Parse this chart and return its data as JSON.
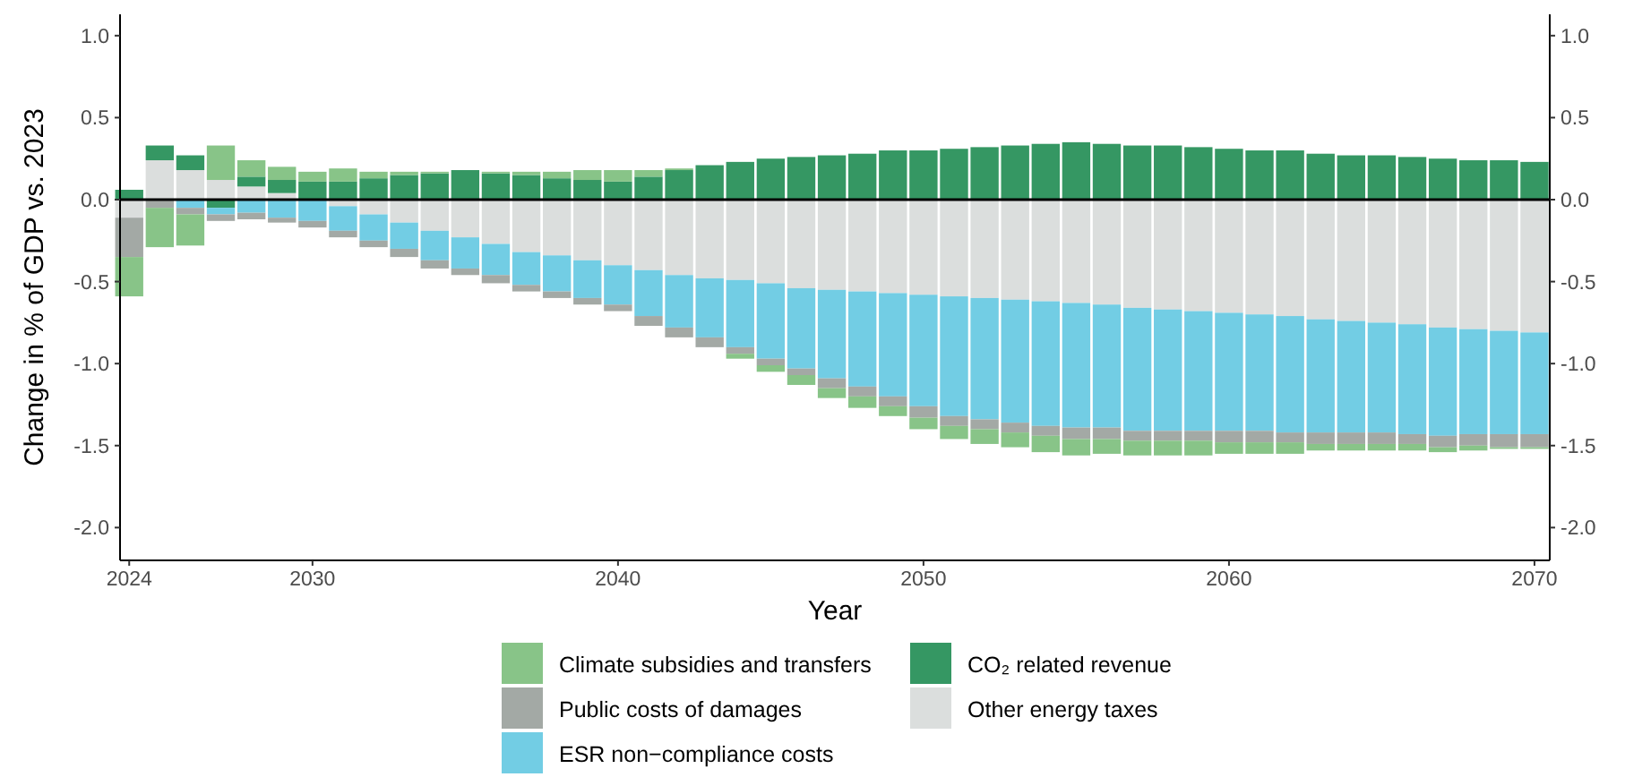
{
  "chart_data": {
    "type": "bar",
    "stacked": true,
    "xlabel": "Year",
    "ylabel": "Change in % of GDP vs. 2023",
    "x": [
      2024,
      2025,
      2026,
      2027,
      2028,
      2029,
      2030,
      2031,
      2032,
      2033,
      2034,
      2035,
      2036,
      2037,
      2038,
      2039,
      2040,
      2041,
      2042,
      2043,
      2044,
      2045,
      2046,
      2047,
      2048,
      2049,
      2050,
      2051,
      2052,
      2053,
      2054,
      2055,
      2056,
      2057,
      2058,
      2059,
      2060,
      2061,
      2062,
      2063,
      2064,
      2065,
      2066,
      2067,
      2068,
      2069,
      2070
    ],
    "xlim": [
      2023.7,
      2070.5
    ],
    "xticks": [
      2024,
      2030,
      2040,
      2050,
      2060,
      2070
    ],
    "ylim": [
      -2.2,
      1.13
    ],
    "yticks": [
      {
        "value": -2,
        "label": "-2.0"
      },
      {
        "value": -1.5,
        "label": "-1.5"
      },
      {
        "value": -1,
        "label": "-1.0"
      },
      {
        "value": -0.5,
        "label": "-0.5"
      },
      {
        "value": 0,
        "label": "0.0"
      },
      {
        "value": 0.5,
        "label": "0.5"
      },
      {
        "value": 1,
        "label": "1.0"
      }
    ],
    "y2lim": [
      -2.2,
      1.13
    ],
    "y2ticks": [
      {
        "value": -2,
        "label": "-2.0"
      },
      {
        "value": -1.5,
        "label": "-1.5"
      },
      {
        "value": -1,
        "label": "-1.0"
      },
      {
        "value": -0.5,
        "label": "-0.5"
      },
      {
        "value": 0,
        "label": "0.0"
      },
      {
        "value": 0.5,
        "label": "0.5"
      },
      {
        "value": 1,
        "label": "1.0"
      }
    ],
    "ref_lines": [
      {
        "axis": "y",
        "value": 0,
        "color": "#000000"
      }
    ],
    "legend": "bottom",
    "series": [
      {
        "name": "Other energy taxes",
        "color": "#dbdedd",
        "values": [
          -0.11,
          0.24,
          0.18,
          0.12,
          0.08,
          0.04,
          null,
          -0.04,
          -0.09,
          -0.14,
          -0.19,
          -0.23,
          -0.27,
          -0.32,
          -0.34,
          -0.37,
          -0.4,
          -0.43,
          -0.46,
          -0.48,
          -0.49,
          -0.51,
          -0.54,
          -0.55,
          -0.56,
          -0.57,
          -0.58,
          -0.59,
          -0.6,
          -0.61,
          -0.62,
          -0.63,
          -0.64,
          -0.66,
          -0.67,
          -0.68,
          -0.69,
          -0.7,
          -0.71,
          -0.73,
          -0.74,
          -0.75,
          -0.76,
          -0.78,
          -0.79,
          -0.8,
          -0.81
        ]
      },
      {
        "name": "CO₂ related revenue",
        "color": "#359763",
        "values": [
          0.06,
          0.09,
          0.09,
          -0.05,
          0.06,
          0.08,
          0.11,
          0.11,
          0.13,
          0.15,
          0.16,
          0.18,
          0.16,
          0.15,
          0.13,
          0.12,
          0.11,
          0.14,
          0.18,
          0.21,
          0.23,
          0.25,
          0.26,
          0.27,
          0.28,
          0.3,
          0.3,
          0.31,
          0.32,
          0.33,
          0.34,
          0.35,
          0.34,
          0.33,
          0.33,
          0.32,
          0.31,
          0.3,
          0.3,
          0.28,
          0.27,
          0.27,
          0.26,
          0.25,
          0.24,
          0.24,
          0.23
        ]
      },
      {
        "name": "ESR non−compliance costs",
        "color": "#72cde4",
        "values": [
          null,
          null,
          -0.05,
          -0.04,
          -0.08,
          -0.11,
          -0.13,
          -0.15,
          -0.16,
          -0.16,
          -0.18,
          -0.19,
          -0.19,
          -0.2,
          -0.22,
          -0.23,
          -0.24,
          -0.28,
          -0.32,
          -0.36,
          -0.41,
          -0.46,
          -0.49,
          -0.54,
          -0.58,
          -0.63,
          -0.68,
          -0.73,
          -0.74,
          -0.75,
          -0.76,
          -0.76,
          -0.75,
          -0.75,
          -0.74,
          -0.73,
          -0.72,
          -0.71,
          -0.71,
          -0.69,
          -0.68,
          -0.67,
          -0.67,
          -0.66,
          -0.64,
          -0.63,
          -0.62
        ]
      },
      {
        "name": "Public costs of damages",
        "color": "#a3a9a5",
        "values": [
          -0.24,
          -0.05,
          -0.04,
          -0.04,
          -0.04,
          -0.03,
          -0.04,
          -0.04,
          -0.04,
          -0.05,
          -0.05,
          -0.04,
          -0.05,
          -0.04,
          -0.04,
          -0.04,
          -0.04,
          -0.06,
          -0.06,
          -0.06,
          -0.04,
          -0.04,
          -0.04,
          -0.06,
          -0.06,
          -0.06,
          -0.07,
          -0.06,
          -0.06,
          -0.06,
          -0.06,
          -0.07,
          -0.07,
          -0.06,
          -0.06,
          -0.06,
          -0.07,
          -0.07,
          -0.06,
          -0.07,
          -0.07,
          -0.07,
          -0.06,
          -0.07,
          -0.07,
          -0.08,
          -0.08
        ]
      },
      {
        "name": "Climate subsidies and transfers",
        "color": "#88c488",
        "values": [
          -0.24,
          -0.24,
          -0.19,
          0.21,
          0.1,
          0.08,
          0.06,
          0.08,
          0.04,
          0.02,
          0.01,
          null,
          0.01,
          0.02,
          0.04,
          0.06,
          0.07,
          0.04,
          0.01,
          null,
          -0.03,
          -0.04,
          -0.06,
          -0.06,
          -0.07,
          -0.06,
          -0.07,
          -0.08,
          -0.09,
          -0.09,
          -0.1,
          -0.1,
          -0.09,
          -0.09,
          -0.09,
          -0.09,
          -0.07,
          -0.07,
          -0.07,
          -0.04,
          -0.04,
          -0.04,
          -0.04,
          -0.03,
          -0.03,
          -0.01,
          -0.01
        ]
      }
    ]
  }
}
